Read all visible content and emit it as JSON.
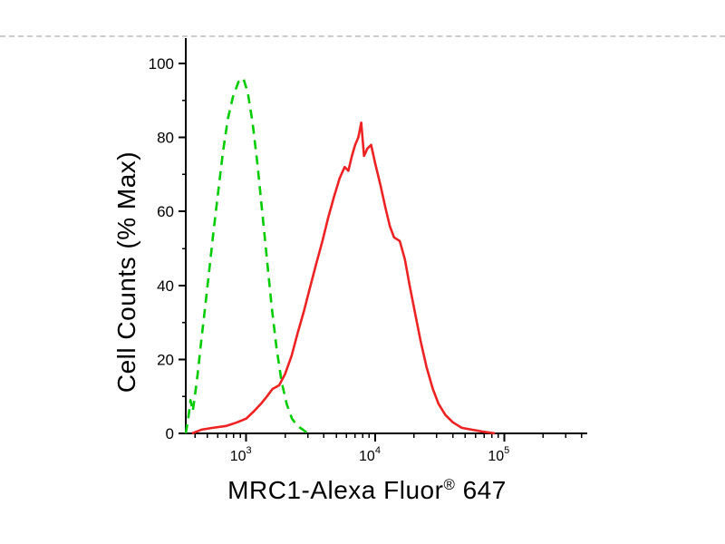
{
  "divider": {
    "visible": true,
    "color": "#cccccc"
  },
  "chart_data": {
    "type": "line",
    "subtype": "flow-cytometry-histogram-overlay",
    "title": "",
    "ylabel": "Cell Counts (% Max)",
    "xlabel_main": "MRC1-Alexa Fluor",
    "xlabel_reg": "®",
    "xlabel_suffix": " 647",
    "xscale": "log",
    "xlim": [
      340,
      420000
    ],
    "ylim": [
      0,
      100
    ],
    "grid": false,
    "legend": "none",
    "axis_color": "#000000",
    "yticks_major": [
      0,
      20,
      40,
      60,
      80,
      100
    ],
    "yticks_minor": [
      10,
      30,
      50,
      70,
      90
    ],
    "xticks_major": [
      1000,
      10000,
      100000
    ],
    "xtick_labels": [
      {
        "base": "10",
        "exp": "3"
      },
      {
        "base": "10",
        "exp": "4"
      },
      {
        "base": "10",
        "exp": "5"
      }
    ],
    "series": [
      {
        "name": "green-dashed-curve",
        "style": "dashed",
        "color": "#00cc00",
        "line_width": 2.6,
        "points": [
          [
            340,
            0
          ],
          [
            355,
            4
          ],
          [
            370,
            9
          ],
          [
            385,
            6
          ],
          [
            400,
            10
          ],
          [
            420,
            16
          ],
          [
            445,
            24
          ],
          [
            480,
            34
          ],
          [
            520,
            45
          ],
          [
            560,
            55
          ],
          [
            610,
            66
          ],
          [
            660,
            76
          ],
          [
            720,
            85
          ],
          [
            790,
            91
          ],
          [
            870,
            95
          ],
          [
            950,
            96
          ],
          [
            1030,
            92
          ],
          [
            1120,
            84
          ],
          [
            1220,
            73
          ],
          [
            1330,
            60
          ],
          [
            1450,
            47
          ],
          [
            1580,
            34
          ],
          [
            1720,
            23
          ],
          [
            1880,
            14
          ],
          [
            2060,
            8
          ],
          [
            2260,
            4
          ],
          [
            2500,
            2
          ],
          [
            2750,
            1
          ],
          [
            3000,
            0
          ]
        ]
      },
      {
        "name": "red-solid-curve",
        "style": "solid",
        "color": "#ee2222",
        "line_width": 2.6,
        "points": [
          [
            380,
            0
          ],
          [
            450,
            1
          ],
          [
            550,
            1.5
          ],
          [
            700,
            2
          ],
          [
            850,
            3
          ],
          [
            1000,
            4
          ],
          [
            1150,
            6
          ],
          [
            1300,
            8
          ],
          [
            1450,
            10
          ],
          [
            1600,
            12
          ],
          [
            1800,
            13
          ],
          [
            2000,
            16
          ],
          [
            2250,
            21
          ],
          [
            2500,
            27
          ],
          [
            2800,
            33
          ],
          [
            3100,
            39
          ],
          [
            3500,
            46
          ],
          [
            3900,
            52
          ],
          [
            4300,
            58
          ],
          [
            4800,
            64
          ],
          [
            5300,
            69
          ],
          [
            5800,
            72
          ],
          [
            6200,
            71
          ],
          [
            6600,
            75
          ],
          [
            7000,
            78
          ],
          [
            7400,
            80
          ],
          [
            7800,
            84
          ],
          [
            8200,
            75
          ],
          [
            8700,
            77
          ],
          [
            9300,
            78
          ],
          [
            10000,
            73
          ],
          [
            11000,
            67
          ],
          [
            12000,
            61
          ],
          [
            13000,
            56
          ],
          [
            14000,
            53
          ],
          [
            15500,
            52
          ],
          [
            17000,
            47
          ],
          [
            18500,
            40
          ],
          [
            20500,
            32
          ],
          [
            22500,
            25
          ],
          [
            25000,
            18
          ],
          [
            28000,
            12
          ],
          [
            31000,
            8
          ],
          [
            35000,
            5
          ],
          [
            40000,
            3
          ],
          [
            47000,
            1.5
          ],
          [
            56000,
            1
          ],
          [
            68000,
            0.5
          ],
          [
            85000,
            0
          ]
        ]
      }
    ]
  }
}
